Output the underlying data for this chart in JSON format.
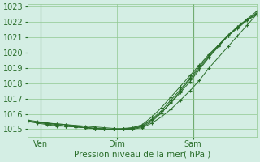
{
  "xlabel": "Pression niveau de la mer( hPa )",
  "bg_color": "#d4eee4",
  "grid_color": "#90c890",
  "line_color": "#2a6e2a",
  "ylim": [
    1014.5,
    1023.2
  ],
  "xlim": [
    0,
    72
  ],
  "yticks": [
    1015,
    1016,
    1017,
    1018,
    1019,
    1020,
    1021,
    1022,
    1023
  ],
  "xtick_positions": [
    4,
    28,
    52
  ],
  "xtick_labels": [
    "Ven",
    "Dim",
    "Sam"
  ],
  "vline_positions": [
    4,
    52
  ],
  "series": [
    {
      "x": [
        0,
        3,
        6,
        9,
        12,
        15,
        18,
        21,
        24,
        27,
        30,
        33,
        36,
        39,
        42,
        45,
        48,
        51,
        54,
        57,
        60,
        63,
        66,
        69,
        72
      ],
      "y": [
        1015.5,
        1015.4,
        1015.3,
        1015.2,
        1015.2,
        1015.15,
        1015.1,
        1015.05,
        1015.0,
        1015.0,
        1015.0,
        1015.0,
        1015.1,
        1015.4,
        1015.8,
        1016.3,
        1016.9,
        1017.5,
        1018.2,
        1019.0,
        1019.7,
        1020.4,
        1021.1,
        1021.8,
        1022.5
      ]
    },
    {
      "x": [
        0,
        3,
        6,
        9,
        12,
        15,
        18,
        21,
        24,
        27,
        30,
        33,
        36,
        39,
        42,
        45,
        48,
        51,
        54,
        57,
        60,
        63,
        66,
        69,
        72
      ],
      "y": [
        1015.5,
        1015.45,
        1015.4,
        1015.35,
        1015.3,
        1015.2,
        1015.1,
        1015.05,
        1015.02,
        1015.0,
        1015.0,
        1015.05,
        1015.2,
        1015.6,
        1016.1,
        1016.7,
        1017.4,
        1018.1,
        1018.9,
        1019.7,
        1020.4,
        1021.1,
        1021.7,
        1022.2,
        1022.7
      ]
    },
    {
      "x": [
        0,
        3,
        6,
        9,
        12,
        15,
        18,
        21,
        24,
        27,
        30,
        33,
        36,
        39,
        42,
        45,
        48,
        51,
        54,
        57,
        60,
        63,
        66,
        69,
        72
      ],
      "y": [
        1015.6,
        1015.5,
        1015.4,
        1015.3,
        1015.2,
        1015.15,
        1015.1,
        1015.05,
        1015.0,
        1015.0,
        1015.0,
        1015.1,
        1015.3,
        1015.8,
        1016.4,
        1017.1,
        1017.8,
        1018.5,
        1019.2,
        1019.9,
        1020.5,
        1021.1,
        1021.6,
        1022.1,
        1022.5
      ]
    },
    {
      "x": [
        0,
        3,
        6,
        9,
        12,
        15,
        18,
        21,
        24,
        27,
        30,
        33,
        36,
        39,
        42,
        45,
        48,
        51,
        54,
        57,
        60,
        63,
        66,
        69,
        72
      ],
      "y": [
        1015.5,
        1015.45,
        1015.4,
        1015.35,
        1015.3,
        1015.25,
        1015.2,
        1015.15,
        1015.1,
        1015.05,
        1015.0,
        1015.05,
        1015.15,
        1015.5,
        1016.05,
        1016.75,
        1017.5,
        1018.25,
        1019.0,
        1019.75,
        1020.45,
        1021.1,
        1021.65,
        1022.15,
        1022.6
      ]
    },
    {
      "x": [
        0,
        3,
        6,
        9,
        12,
        15,
        18,
        21,
        24,
        27,
        30,
        33,
        36,
        39,
        42,
        45,
        48,
        51,
        54,
        57,
        60,
        63,
        66,
        69,
        72
      ],
      "y": [
        1015.55,
        1015.45,
        1015.35,
        1015.25,
        1015.2,
        1015.15,
        1015.1,
        1015.05,
        1015.0,
        1015.0,
        1015.05,
        1015.1,
        1015.25,
        1015.65,
        1016.2,
        1016.9,
        1017.6,
        1018.35,
        1019.1,
        1019.82,
        1020.5,
        1021.15,
        1021.7,
        1022.15,
        1022.55
      ]
    }
  ]
}
